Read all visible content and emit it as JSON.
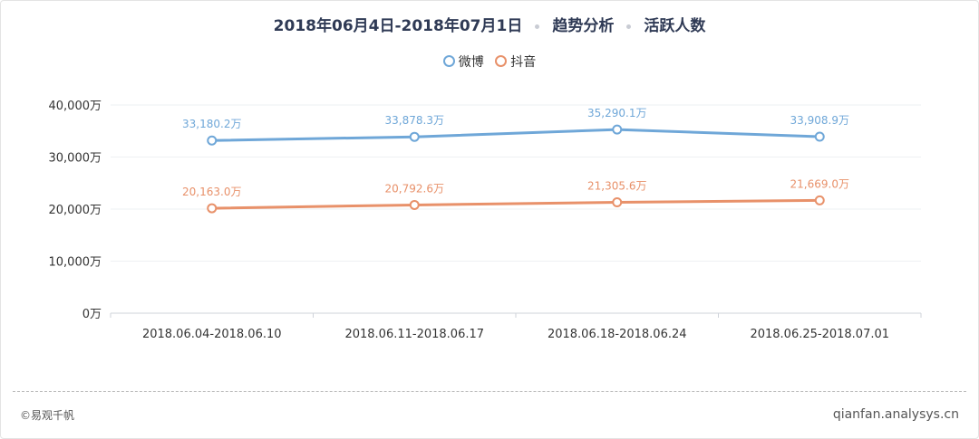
{
  "header": {
    "date_range": "2018年06月4日-2018年07月1日",
    "analysis": "趋势分析",
    "metric": "活跃人数"
  },
  "footer": {
    "copyright": "©易观千帆",
    "site": "qianfan.analysys.cn"
  },
  "chart_data": {
    "type": "line",
    "categories": [
      "2018.06.04-2018.06.10",
      "2018.06.11-2018.06.17",
      "2018.06.18-2018.06.24",
      "2018.06.25-2018.07.01"
    ],
    "series": [
      {
        "name": "微博",
        "values": [
          33180.2,
          33878.3,
          35290.1,
          33908.9
        ],
        "labels": [
          "33,180.2万",
          "33,878.3万",
          "35,290.1万",
          "33,908.9万"
        ],
        "color": "#6fa7d8"
      },
      {
        "name": "抖音",
        "values": [
          20163.0,
          20792.6,
          21305.6,
          21669.0
        ],
        "labels": [
          "20,163.0万",
          "20,792.6万",
          "21,305.6万",
          "21,669.0万"
        ],
        "color": "#e8916a"
      }
    ],
    "yticks": [
      0,
      10000,
      20000,
      30000,
      40000
    ],
    "ytick_labels": [
      "0万",
      "10,000万",
      "20,000万",
      "30,000万",
      "40,000万"
    ],
    "ylim": [
      0,
      40000
    ],
    "grid": true,
    "legend": "top-center"
  }
}
